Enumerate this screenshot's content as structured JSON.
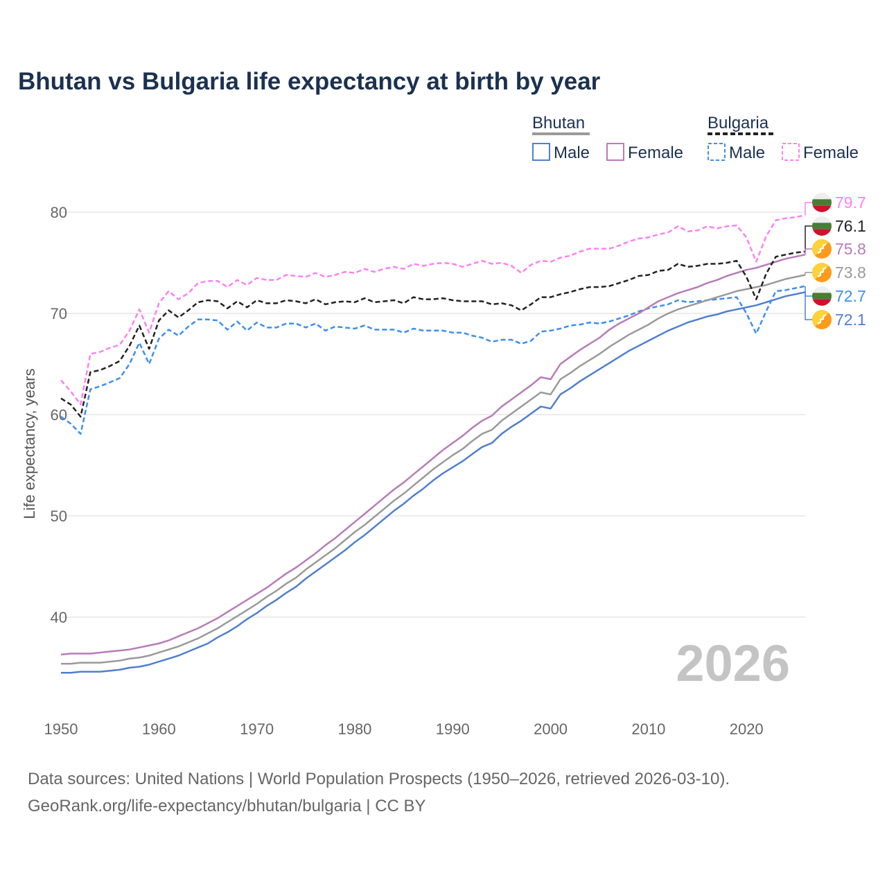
{
  "chart_data": {
    "type": "line",
    "title": "Bhutan vs Bulgaria life expectancy at birth by year",
    "ylabel": "Life expectancy, years",
    "xlabel": "",
    "xlim": [
      1950,
      2026
    ],
    "ylim": [
      31,
      82
    ],
    "x_ticks": [
      1950,
      1960,
      1970,
      1980,
      1990,
      2000,
      2010,
      2020
    ],
    "y_ticks": [
      40,
      50,
      60,
      70,
      80
    ],
    "grid": true,
    "watermark_year": "2026",
    "legend": {
      "placement": "top-right",
      "groups": [
        {
          "country": "Bhutan",
          "entries": [
            "Male",
            "Female"
          ]
        },
        {
          "country": "Bulgaria",
          "entries": [
            "Male",
            "Female"
          ]
        }
      ]
    },
    "x_start": 1950,
    "series": [
      {
        "name": "Bulgaria Female",
        "country": "Bulgaria",
        "flag": "bulgaria",
        "color": "#ff80f2",
        "dashed": true,
        "end_label": "79.7",
        "values": [
          63.4,
          62.3,
          61.0,
          66.0,
          66.2,
          66.6,
          66.9,
          68.3,
          70.4,
          68.1,
          71.0,
          72.2,
          71.4,
          72.0,
          73.0,
          73.2,
          73.2,
          72.6,
          73.3,
          72.8,
          73.5,
          73.3,
          73.3,
          73.8,
          73.7,
          73.6,
          74.0,
          73.6,
          73.8,
          74.1,
          74.0,
          74.4,
          74.1,
          74.4,
          74.6,
          74.4,
          74.9,
          74.7,
          74.9,
          75.0,
          74.9,
          74.6,
          74.9,
          75.2,
          74.9,
          75.0,
          74.7,
          74.0,
          74.8,
          75.2,
          75.1,
          75.5,
          75.7,
          76.1,
          76.4,
          76.4,
          76.4,
          76.7,
          77.1,
          77.4,
          77.5,
          77.8,
          78.0,
          78.6,
          78.1,
          78.2,
          78.6,
          78.4,
          78.6,
          78.7,
          77.5,
          75.1,
          77.6,
          79.2,
          79.4,
          79.5,
          79.7
        ]
      },
      {
        "name": "Bulgaria Total",
        "country": "Bulgaria",
        "flag": "bulgaria",
        "color": "#222222",
        "dashed": true,
        "end_label": "76.1",
        "values": [
          61.6,
          61.0,
          59.8,
          64.2,
          64.4,
          64.8,
          65.3,
          66.8,
          68.8,
          66.5,
          69.3,
          70.3,
          69.6,
          70.3,
          71.1,
          71.3,
          71.2,
          70.5,
          71.2,
          70.6,
          71.3,
          71.0,
          71.0,
          71.3,
          71.2,
          71.0,
          71.4,
          70.9,
          71.1,
          71.2,
          71.1,
          71.5,
          71.1,
          71.2,
          71.3,
          71.0,
          71.6,
          71.4,
          71.4,
          71.5,
          71.3,
          71.2,
          71.2,
          71.2,
          70.9,
          71.0,
          70.8,
          70.3,
          70.9,
          71.6,
          71.6,
          71.9,
          72.1,
          72.4,
          72.6,
          72.6,
          72.7,
          73.0,
          73.3,
          73.7,
          73.8,
          74.2,
          74.3,
          74.9,
          74.6,
          74.7,
          74.9,
          74.9,
          75.0,
          75.2,
          73.6,
          71.4,
          73.9,
          75.6,
          75.8,
          76.0,
          76.1
        ]
      },
      {
        "name": "Bhutan Female",
        "country": "Bhutan",
        "flag": "bhutan",
        "color": "#b77cb8",
        "dashed": false,
        "end_label": "75.8",
        "values": [
          36.3,
          36.4,
          36.4,
          36.4,
          36.5,
          36.6,
          36.7,
          36.8,
          37.0,
          37.2,
          37.4,
          37.7,
          38.1,
          38.5,
          38.9,
          39.4,
          39.9,
          40.5,
          41.1,
          41.7,
          42.3,
          42.9,
          43.6,
          44.3,
          44.9,
          45.6,
          46.3,
          47.1,
          47.8,
          48.6,
          49.4,
          50.2,
          51.0,
          51.8,
          52.6,
          53.3,
          54.1,
          54.9,
          55.7,
          56.5,
          57.2,
          57.9,
          58.7,
          59.4,
          59.9,
          60.8,
          61.5,
          62.2,
          62.9,
          63.7,
          63.5,
          65.0,
          65.7,
          66.4,
          67.0,
          67.6,
          68.4,
          69.0,
          69.5,
          70.0,
          70.6,
          71.2,
          71.6,
          72.0,
          72.3,
          72.6,
          73.0,
          73.3,
          73.7,
          74.0,
          74.3,
          74.5,
          74.8,
          75.1,
          75.4,
          75.6,
          75.8
        ]
      },
      {
        "name": "Bhutan Total",
        "country": "Bhutan",
        "flag": "bhutan",
        "color": "#9a9a9a",
        "dashed": false,
        "end_label": "73.8",
        "values": [
          35.4,
          35.4,
          35.5,
          35.5,
          35.5,
          35.6,
          35.7,
          35.9,
          36.0,
          36.2,
          36.5,
          36.8,
          37.1,
          37.5,
          37.9,
          38.4,
          38.9,
          39.5,
          40.1,
          40.7,
          41.3,
          42.0,
          42.6,
          43.3,
          43.9,
          44.7,
          45.4,
          46.1,
          46.8,
          47.6,
          48.4,
          49.1,
          49.9,
          50.7,
          51.5,
          52.2,
          53.0,
          53.8,
          54.6,
          55.3,
          56.0,
          56.6,
          57.4,
          58.1,
          58.5,
          59.4,
          60.1,
          60.8,
          61.5,
          62.2,
          62.0,
          63.5,
          64.1,
          64.8,
          65.4,
          66.0,
          66.7,
          67.3,
          67.9,
          68.4,
          68.9,
          69.5,
          70.0,
          70.4,
          70.7,
          71.0,
          71.3,
          71.6,
          71.9,
          72.2,
          72.4,
          72.6,
          72.8,
          73.1,
          73.4,
          73.6,
          73.8
        ]
      },
      {
        "name": "Bulgaria Male",
        "country": "Bulgaria",
        "flag": "bulgaria",
        "color": "#3d8ef0",
        "dashed": true,
        "end_label": "72.7",
        "values": [
          59.8,
          59.1,
          58.1,
          62.5,
          62.8,
          63.2,
          63.6,
          65.0,
          67.1,
          65.0,
          67.5,
          68.4,
          67.8,
          68.7,
          69.4,
          69.4,
          69.3,
          68.4,
          69.2,
          68.3,
          69.1,
          68.6,
          68.6,
          69.0,
          69.0,
          68.6,
          69.0,
          68.3,
          68.7,
          68.6,
          68.5,
          68.8,
          68.4,
          68.4,
          68.4,
          68.1,
          68.5,
          68.3,
          68.3,
          68.3,
          68.1,
          68.1,
          67.8,
          67.6,
          67.2,
          67.4,
          67.4,
          67.0,
          67.3,
          68.2,
          68.3,
          68.5,
          68.8,
          68.9,
          69.1,
          69.0,
          69.2,
          69.5,
          69.8,
          70.2,
          70.5,
          70.7,
          70.9,
          71.3,
          71.1,
          71.2,
          71.3,
          71.4,
          71.5,
          71.6,
          70.0,
          68.0,
          70.2,
          72.2,
          72.3,
          72.5,
          72.7
        ]
      },
      {
        "name": "Bhutan Male",
        "country": "Bhutan",
        "flag": "bhutan",
        "color": "#4f7fd0",
        "dashed": false,
        "end_label": "72.1",
        "values": [
          34.5,
          34.5,
          34.6,
          34.6,
          34.6,
          34.7,
          34.8,
          35.0,
          35.1,
          35.3,
          35.6,
          35.9,
          36.2,
          36.6,
          37.0,
          37.4,
          38.0,
          38.5,
          39.1,
          39.8,
          40.4,
          41.1,
          41.7,
          42.4,
          43.0,
          43.8,
          44.5,
          45.2,
          45.9,
          46.6,
          47.4,
          48.1,
          48.9,
          49.7,
          50.5,
          51.2,
          52.0,
          52.7,
          53.5,
          54.2,
          54.8,
          55.4,
          56.1,
          56.8,
          57.2,
          58.1,
          58.8,
          59.4,
          60.1,
          60.8,
          60.6,
          62.0,
          62.6,
          63.3,
          63.9,
          64.5,
          65.1,
          65.7,
          66.3,
          66.8,
          67.3,
          67.8,
          68.3,
          68.7,
          69.1,
          69.4,
          69.7,
          69.9,
          70.2,
          70.4,
          70.6,
          70.8,
          71.1,
          71.4,
          71.7,
          71.9,
          72.1
        ]
      }
    ]
  },
  "source_line1": "Data sources: United Nations | World Population Prospects (1950–2026, retrieved 2026-03-10).",
  "source_line2": "GeoRank.org/life-expectancy/bhutan/bulgaria | CC BY",
  "legend_labels": {
    "bhutan": "Bhutan",
    "bulgaria": "Bulgaria",
    "male": "Male",
    "female": "Female"
  }
}
